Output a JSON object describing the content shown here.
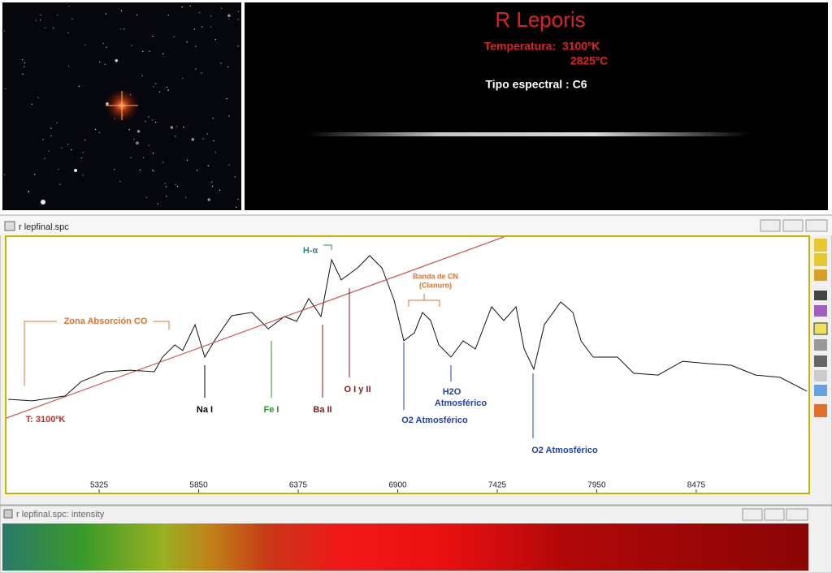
{
  "top_panel": {
    "title": "R Leporis",
    "temperature": "Temperatura:  3100ºK",
    "temperature_c": "2825ºC",
    "spectral_type": "Tipo espectral : C6"
  },
  "spectrum_window": {
    "title": "r lepfinal.spc",
    "chart_data": {
      "type": "line",
      "xlim": [
        4836,
        9067
      ],
      "ylim": [
        0,
        100
      ],
      "xticks": [
        5325,
        5850,
        6375,
        6900,
        7425,
        7950,
        8475
      ],
      "series": [
        {
          "color": "#111111",
          "x": [
            4845,
            4973,
            5145,
            5231,
            5359,
            5488,
            5616,
            5659,
            5724,
            5766,
            5831,
            5882,
            5938,
            6024,
            6131,
            6217,
            6302,
            6367,
            6431,
            6495,
            6551,
            6602,
            6688,
            6752,
            6817,
            6881,
            6932,
            6988,
            7031,
            7074,
            7117,
            7181,
            7245,
            7310,
            7395,
            7460,
            7524,
            7567,
            7618,
            7674,
            7760,
            7824,
            7867,
            7931,
            8060,
            8145,
            8274,
            8403,
            8531,
            8660,
            8788,
            8917,
            9058
          ],
          "values": [
            36.5,
            35.9,
            37.8,
            43.5,
            47.3,
            47.9,
            47.3,
            53.0,
            57.8,
            55.6,
            65.7,
            53.0,
            60.0,
            69.2,
            70.5,
            64.1,
            68.9,
            67.0,
            75.9,
            68.9,
            91.1,
            83.2,
            87.9,
            92.7,
            87.9,
            75.2,
            59.4,
            62.5,
            70.5,
            67.3,
            57.8,
            53.0,
            59.4,
            56.2,
            72.7,
            67.3,
            72.7,
            56.2,
            48.3,
            65.7,
            74.6,
            70.5,
            59.4,
            53.0,
            53.0,
            46.7,
            46.0,
            51.4,
            50.5,
            49.8,
            46.0,
            45.1,
            39.7
          ]
        },
        {
          "color": "#e03030",
          "x": [
            4836,
            7459
          ],
          "values": [
            29.2,
            100
          ]
        }
      ],
      "annotations": [
        "Zona Absorción CO",
        "T: 3100ºK",
        "H-α",
        "Banda de CN",
        "(Cianuro)",
        "Na I",
        "Fe I",
        "Ba II",
        "O I y II",
        "O2 Atmosférico",
        "H2O",
        "Atmosférico",
        "O2 Atmosférico"
      ]
    }
  },
  "strip_window": {
    "title": "r lepfinal.spc: intensity"
  }
}
